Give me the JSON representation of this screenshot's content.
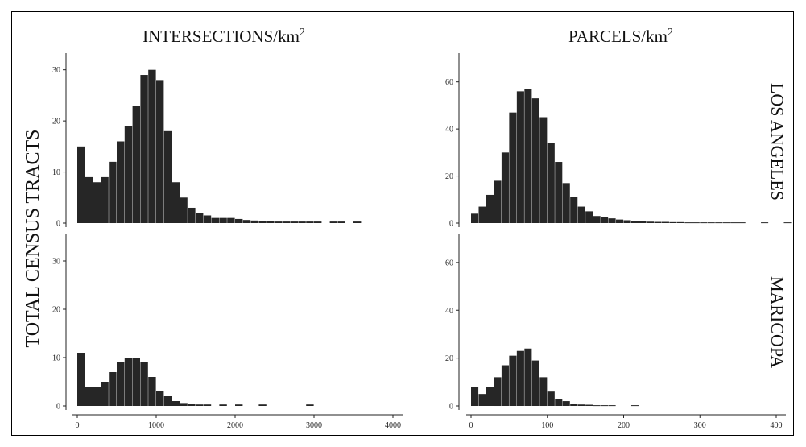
{
  "figure": {
    "y_title": "TOTAL CENSUS TRACTS",
    "col_titles": [
      {
        "text": "INTERSECTIONS/km",
        "sup": "2"
      },
      {
        "text": "PARCELS/km",
        "sup": "2"
      }
    ],
    "row_labels": [
      "LOS ANGELES",
      "MARICOPA"
    ]
  },
  "colors": {
    "bar": "#262626",
    "axis": "#222222",
    "border": "#000000"
  },
  "chart_data": [
    {
      "type": "bar",
      "panel": "intersections-los-angeles",
      "title": "",
      "xlabel": "INTERSECTIONS/km2",
      "ylabel": "TOTAL CENSUS TRACTS",
      "xlim": [
        0,
        4000
      ],
      "ylim": [
        0,
        32
      ],
      "x_ticks": [
        0,
        1000,
        2000,
        3000,
        4000
      ],
      "y_ticks": [
        0,
        10,
        20,
        30
      ],
      "x_tick_labels": [
        "0",
        "1000",
        "2000",
        "3000",
        "4000"
      ],
      "y_tick_labels": [
        "0",
        "10",
        "20",
        "30"
      ],
      "bin_width": 100,
      "x": [
        0,
        100,
        200,
        300,
        400,
        500,
        600,
        700,
        800,
        900,
        1000,
        1100,
        1200,
        1300,
        1400,
        1500,
        1600,
        1700,
        1800,
        1900,
        2000,
        2100,
        2200,
        2300,
        2400,
        2500,
        2600,
        2700,
        2800,
        2900,
        3000,
        3100,
        3200,
        3300,
        3400,
        3500
      ],
      "values": [
        15,
        9,
        8,
        9,
        12,
        16,
        19,
        23,
        29,
        30,
        28,
        18,
        8,
        5,
        3,
        2,
        1.5,
        1,
        1,
        1,
        0.8,
        0.6,
        0.5,
        0.4,
        0.4,
        0.3,
        0.3,
        0.3,
        0.3,
        0.3,
        0.3,
        0,
        0.3,
        0.3,
        0,
        0.3
      ]
    },
    {
      "type": "bar",
      "panel": "parcels-los-angeles",
      "title": "",
      "xlabel": "PARCELS/km2",
      "ylabel": "",
      "xlim": [
        0,
        400
      ],
      "ylim": [
        0,
        64
      ],
      "x_ticks": [
        0,
        100,
        200,
        300,
        400
      ],
      "y_ticks": [
        0,
        20,
        40,
        60
      ],
      "x_tick_labels": [
        "0",
        "100",
        "200",
        "300",
        "400"
      ],
      "y_tick_labels": [
        "0",
        "20",
        "40",
        "60"
      ],
      "bin_width": 10,
      "x": [
        0,
        10,
        20,
        30,
        40,
        50,
        60,
        70,
        80,
        90,
        100,
        110,
        120,
        130,
        140,
        150,
        160,
        170,
        180,
        190,
        200,
        210,
        220,
        230,
        240,
        250,
        260,
        270,
        280,
        290,
        300,
        310,
        320,
        330,
        340,
        350,
        360,
        370,
        380,
        390,
        400,
        410
      ],
      "values": [
        4,
        7,
        12,
        18,
        30,
        47,
        56,
        57,
        53,
        45,
        34,
        26,
        17,
        11,
        7,
        5,
        3,
        2.5,
        2,
        1.5,
        1.2,
        1,
        0.8,
        0.6,
        0.5,
        0.5,
        0.4,
        0.4,
        0.3,
        0.3,
        0.3,
        0.3,
        0.3,
        0.3,
        0.3,
        0.3,
        0,
        0,
        0.3,
        0,
        0,
        0.3
      ]
    },
    {
      "type": "bar",
      "panel": "intersections-maricopa",
      "title": "",
      "xlabel": "INTERSECTIONS/km2",
      "ylabel": "TOTAL CENSUS TRACTS",
      "xlim": [
        0,
        4000
      ],
      "ylim": [
        0,
        32
      ],
      "x_ticks": [
        0,
        1000,
        2000,
        3000,
        4000
      ],
      "y_ticks": [
        0,
        10,
        20,
        30
      ],
      "x_tick_labels": [
        "0",
        "1000",
        "2000",
        "3000",
        "4000"
      ],
      "y_tick_labels": [
        "0",
        "10",
        "20",
        "30"
      ],
      "bin_width": 100,
      "x": [
        0,
        100,
        200,
        300,
        400,
        500,
        600,
        700,
        800,
        900,
        1000,
        1100,
        1200,
        1300,
        1400,
        1500,
        1600,
        1700,
        1800,
        1900,
        2000,
        2100,
        2200,
        2300,
        2400,
        2500,
        2600,
        2700,
        2800,
        2900,
        3000
      ],
      "values": [
        11,
        4,
        4,
        5,
        7,
        9,
        10,
        10,
        9,
        6,
        3,
        2,
        1,
        0.6,
        0.4,
        0.3,
        0.3,
        0,
        0.3,
        0,
        0.3,
        0,
        0,
        0.3,
        0,
        0,
        0,
        0,
        0,
        0.3,
        0
      ]
    },
    {
      "type": "bar",
      "panel": "parcels-maricopa",
      "title": "",
      "xlabel": "PARCELS/km2",
      "ylabel": "",
      "xlim": [
        0,
        400
      ],
      "ylim": [
        0,
        64
      ],
      "x_ticks": [
        0,
        100,
        200,
        300,
        400
      ],
      "y_ticks": [
        0,
        20,
        40,
        60
      ],
      "x_tick_labels": [
        "0",
        "100",
        "200",
        "300",
        "400"
      ],
      "y_tick_labels": [
        "0",
        "20",
        "40",
        "60"
      ],
      "bin_width": 10,
      "x": [
        0,
        10,
        20,
        30,
        40,
        50,
        60,
        70,
        80,
        90,
        100,
        110,
        120,
        130,
        140,
        150,
        160,
        170,
        180,
        190,
        200,
        210
      ],
      "values": [
        8,
        5,
        8,
        12,
        17,
        21,
        23,
        24,
        19,
        12,
        6,
        3,
        2,
        1,
        0.6,
        0.5,
        0.3,
        0.3,
        0.3,
        0,
        0,
        0.3
      ]
    }
  ]
}
